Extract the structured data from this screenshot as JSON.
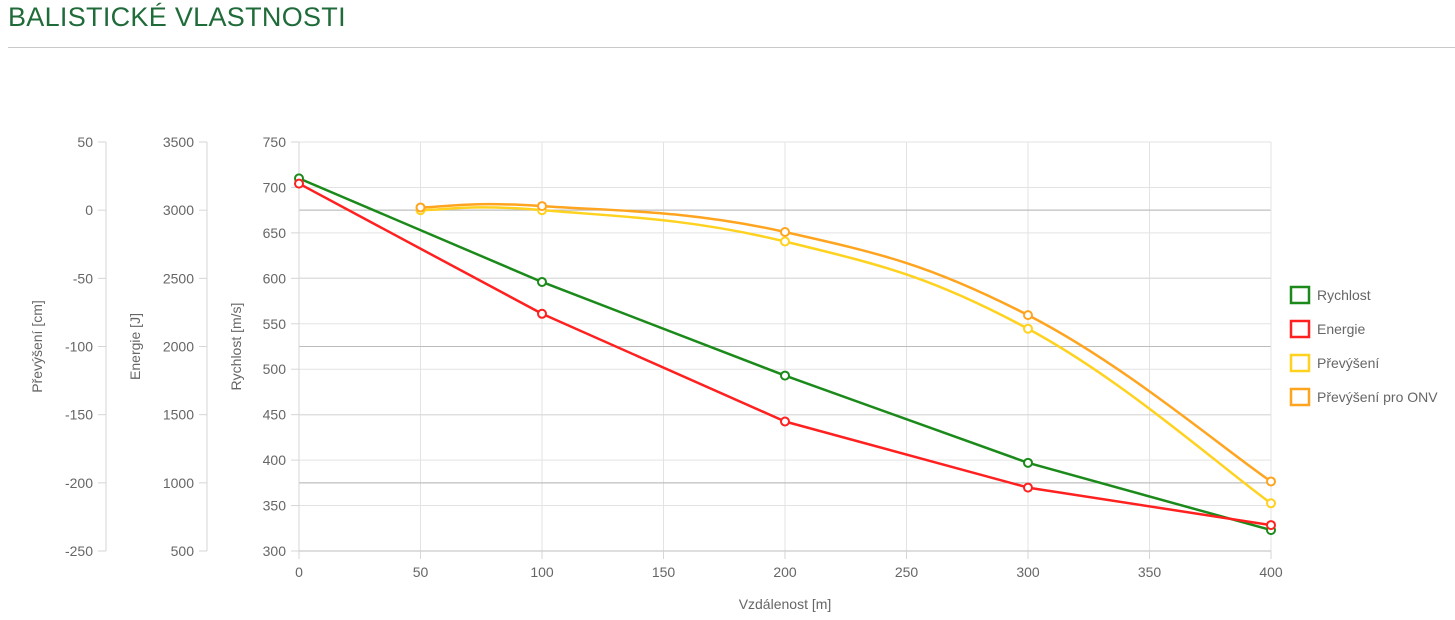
{
  "page": {
    "title": "BALISTICKÉ VLASTNOSTI"
  },
  "chart_data": {
    "type": "line",
    "x": [
      0,
      50,
      100,
      200,
      300,
      400
    ],
    "xlabel": "Vzdálenost [m]",
    "xlim": [
      0,
      400
    ],
    "xticks": [
      0,
      50,
      100,
      150,
      200,
      250,
      300,
      350,
      400
    ],
    "axes": [
      {
        "id": "prevyseni",
        "label": "Převýšení [cm]",
        "ylim": [
          -250,
          50
        ],
        "ticks": [
          50,
          0,
          -50,
          -100,
          -150,
          -200,
          -250
        ]
      },
      {
        "id": "energie",
        "label": "Energie [J]",
        "ylim": [
          500,
          3500
        ],
        "ticks": [
          3500,
          3000,
          2500,
          2000,
          1500,
          1000,
          500
        ]
      },
      {
        "id": "rychlost",
        "label": "Rychlost [m/s]",
        "ylim": [
          300,
          750
        ],
        "ticks": [
          750,
          700,
          650,
          600,
          550,
          500,
          450,
          400,
          350,
          300
        ]
      }
    ],
    "series": [
      {
        "name": "Rychlost",
        "axis": "rychlost",
        "color": "#1b8a1b",
        "smooth": false,
        "values": [
          710,
          null,
          596,
          493,
          397,
          323
        ]
      },
      {
        "name": "Energie",
        "axis": "energie",
        "color": "#ff2020",
        "smooth": false,
        "values": [
          3195,
          null,
          2240,
          1450,
          965,
          690
        ]
      },
      {
        "name": "Převýšení",
        "axis": "prevyseni",
        "color": "#ffd21f",
        "smooth": true,
        "values": [
          null,
          0,
          0,
          -23,
          -87,
          -215
        ]
      },
      {
        "name": "Převýšení pro ONV",
        "axis": "prevyseni",
        "color": "#ffa41f",
        "smooth": true,
        "values": [
          null,
          2,
          3,
          -16,
          -77,
          -199
        ]
      }
    ],
    "legend": "right",
    "grid": true
  }
}
